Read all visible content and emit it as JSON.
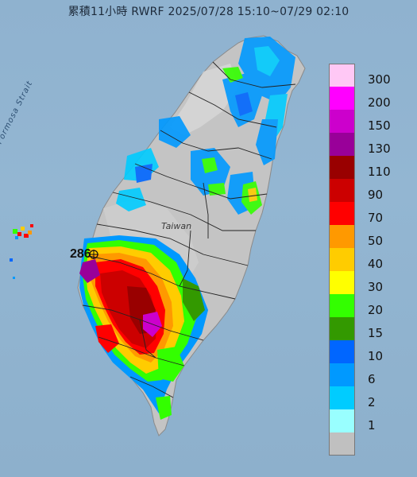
{
  "title": "累積11小時 RWRF 2025/07/28 15:10~07/29 02:10",
  "labels": {
    "strait": "Formosa Strait",
    "island": "Taiwan",
    "max_value": "286"
  },
  "legend": {
    "unit": "",
    "items": [
      {
        "label": "300",
        "color": "#ffc8f5"
      },
      {
        "label": "200",
        "color": "#ff00ff"
      },
      {
        "label": "150",
        "color": "#cc00cc"
      },
      {
        "label": "130",
        "color": "#990099"
      },
      {
        "label": "110",
        "color": "#990000"
      },
      {
        "label": "90",
        "color": "#cc0000"
      },
      {
        "label": "70",
        "color": "#ff0000"
      },
      {
        "label": "50",
        "color": "#ff9900"
      },
      {
        "label": "40",
        "color": "#ffcc00"
      },
      {
        "label": "30",
        "color": "#ffff00"
      },
      {
        "label": "20",
        "color": "#33ff00"
      },
      {
        "label": "15",
        "color": "#339900"
      },
      {
        "label": "10",
        "color": "#0066ff"
      },
      {
        "label": "6",
        "color": "#0099ff"
      },
      {
        "label": "2",
        "color": "#00ccff"
      },
      {
        "label": "1",
        "color": "#99ffff"
      },
      {
        "label": "",
        "color": "#c0c0c0"
      }
    ]
  },
  "colors": {
    "sea": "#93b6d2",
    "land_no_rain": "#bcbcbc",
    "land_base": "#d2d2d2",
    "county_border": "#222222"
  }
}
